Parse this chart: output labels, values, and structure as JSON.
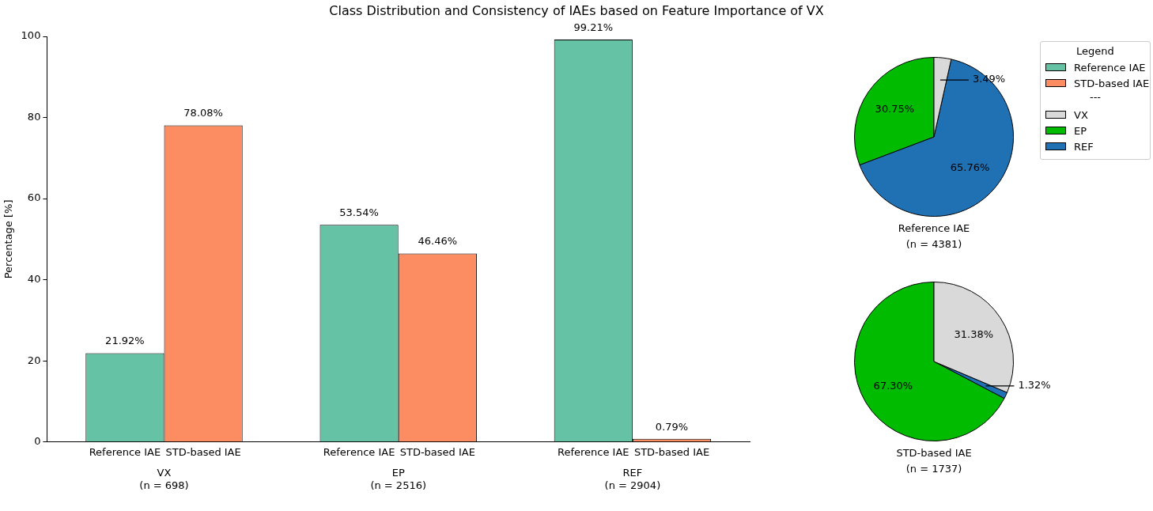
{
  "chart_data": [
    {
      "type": "bar",
      "title": "Class Distribution and Consistency of IAEs based on Feature Importance of VX",
      "ylabel": "Percentage [%]",
      "categories": [
        "VX\n(n = 698)",
        "EP\n(n = 2516)",
        "REF\n(n = 2904)"
      ],
      "series": [
        {
          "name": "Reference IAE",
          "color": "#66c2a5",
          "values": [
            21.92,
            53.54,
            99.21
          ],
          "value_labels": [
            "21.92%",
            "53.54%",
            "99.21%"
          ]
        },
        {
          "name": "STD-based IAE",
          "color": "#fc8d62",
          "values": [
            78.08,
            46.46,
            0.79
          ],
          "value_labels": [
            "78.08%",
            "46.46%",
            "0.79%"
          ]
        }
      ],
      "ylim": [
        0,
        100
      ],
      "yticks": [
        0,
        20,
        40,
        60,
        80,
        100
      ],
      "grid": false,
      "legend": "right",
      "legend_title": "Legend"
    },
    {
      "type": "pie",
      "xlabel": "Reference IAE\n(n = 4381)",
      "categories": [
        "VX",
        "EP",
        "REF"
      ],
      "values": [
        3.49,
        30.75,
        65.76
      ],
      "value_labels": [
        "3.49%",
        "30.75%",
        "65.76%"
      ],
      "colors": [
        "#d9d9d9",
        "#00bb00",
        "#2070b4"
      ],
      "legend": "right",
      "annotations": [
        "---"
      ]
    },
    {
      "type": "pie",
      "xlabel": "STD-based IAE\n(n = 1737)",
      "categories": [
        null,
        null,
        null
      ],
      "values": [
        31.38,
        67.3,
        1.32
      ],
      "value_labels": [
        "31.38%",
        "67.30%",
        "1.32%"
      ],
      "colors": [
        "#d9d9d9",
        "#00bb00",
        "#2070b4"
      ]
    }
  ]
}
